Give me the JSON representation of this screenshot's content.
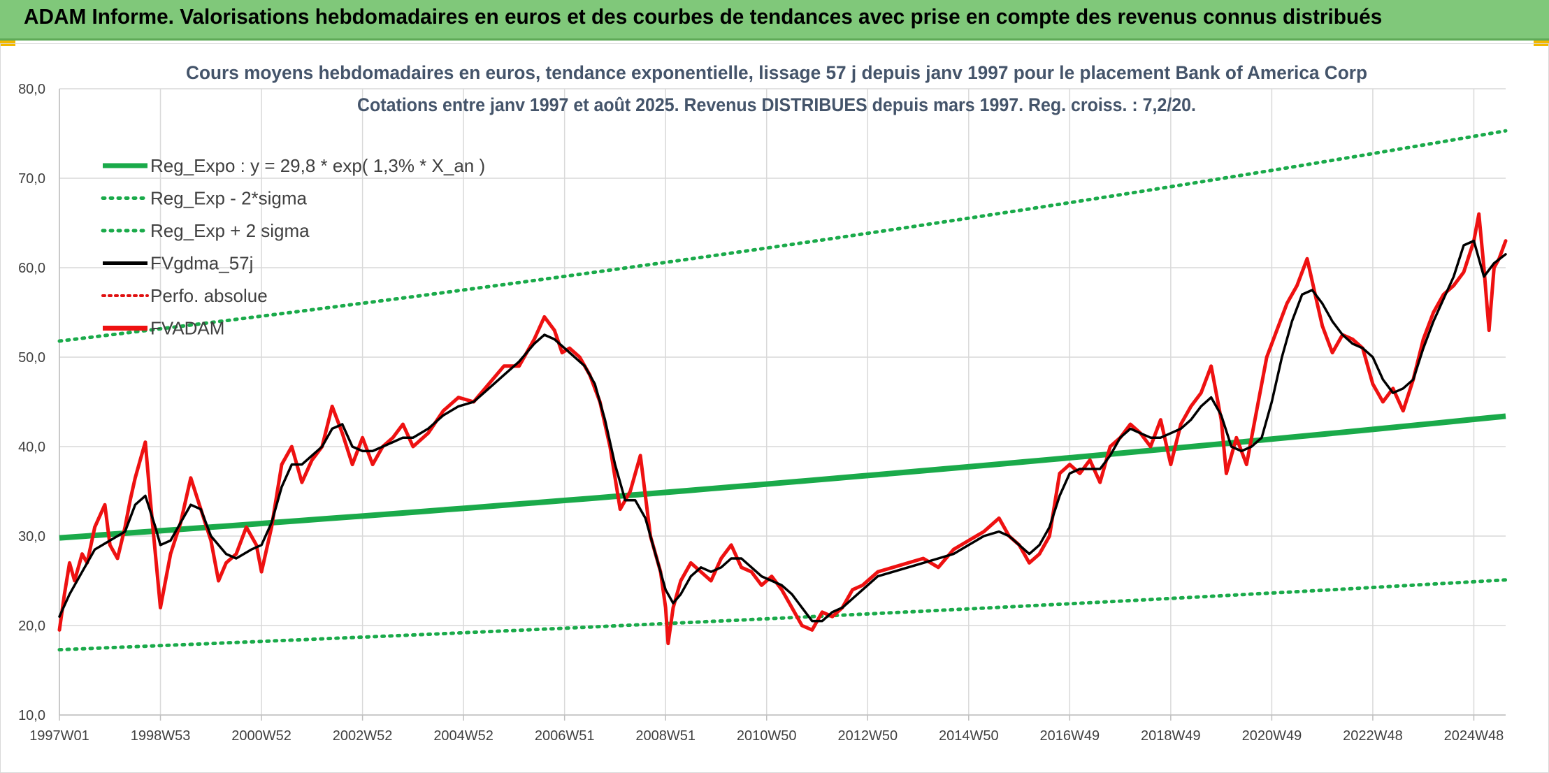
{
  "header": {
    "title": "ADAM Informe. Valorisations hebdomadaires en euros et des courbes de tendances avec prise en compte des revenus connus distribués"
  },
  "colors": {
    "banner": "#80c87a",
    "reg_expo": "#1aaa4a",
    "sigma": "#1aaa4a",
    "fvgdma": "#000000",
    "perfo": "#e01010",
    "fvadam": "#ee1111",
    "axis_text": "#404040",
    "grid": "#d9d9d9"
  },
  "chart_data": {
    "type": "line",
    "title": "Cours moyens hebdomadaires en euros, tendance exponentielle, lissage 57 j depuis janv 1997 pour le placement Bank of America Corp",
    "subtitle": "Cotations entre janv 1997 et août 2025. Revenus DISTRIBUES depuis mars 1997. Reg. croiss. : 7,2/20.",
    "x_range": [
      1997.0,
      2025.63
    ],
    "ylim": [
      10,
      80
    ],
    "yticks": [
      "10,0",
      "20,0",
      "30,0",
      "40,0",
      "50,0",
      "60,0",
      "70,0",
      "80,0"
    ],
    "xticks": [
      {
        "label": "1997W01",
        "x": 1997.0
      },
      {
        "label": "1998W53",
        "x": 1999.0
      },
      {
        "label": "2000W52",
        "x": 2001.0
      },
      {
        "label": "2002W52",
        "x": 2003.0
      },
      {
        "label": "2004W52",
        "x": 2005.0
      },
      {
        "label": "2006W51",
        "x": 2007.0
      },
      {
        "label": "2008W51",
        "x": 2009.0
      },
      {
        "label": "2010W50",
        "x": 2011.0
      },
      {
        "label": "2012W50",
        "x": 2013.0
      },
      {
        "label": "2014W50",
        "x": 2015.0
      },
      {
        "label": "2016W49",
        "x": 2017.0
      },
      {
        "label": "2018W49",
        "x": 2019.0
      },
      {
        "label": "2020W49",
        "x": 2021.0
      },
      {
        "label": "2022W48",
        "x": 2023.0
      },
      {
        "label": "2024W48",
        "x": 2025.0
      }
    ],
    "grid": true,
    "legend_position": "top-left",
    "legend": [
      {
        "key": "reg_expo",
        "label": "Reg_Expo : y = 29,8 * exp( 1,3% *  X_an )",
        "style": "solid-thick"
      },
      {
        "key": "reg_minus",
        "label": "Reg_Exp - 2*sigma",
        "style": "dotted"
      },
      {
        "key": "reg_plus",
        "label": "Reg_Exp + 2 sigma",
        "style": "dotted"
      },
      {
        "key": "fvgdma",
        "label": "FVgdma_57j",
        "style": "solid"
      },
      {
        "key": "perfo",
        "label": "Perfo. absolue",
        "style": "dotted"
      },
      {
        "key": "fvadam",
        "label": "FVADAM",
        "style": "solid-thick"
      }
    ],
    "series": [
      {
        "key": "reg_expo",
        "name": "Reg_Expo : y = 29,8 * exp( 1,3% *  X_an )",
        "x": [
          1997.0,
          2025.63
        ],
        "values": [
          29.8,
          43.4
        ]
      },
      {
        "key": "reg_minus",
        "name": "Reg_Exp - 2*sigma",
        "x": [
          1997.0,
          2025.63
        ],
        "values": [
          17.3,
          25.1
        ]
      },
      {
        "key": "reg_plus",
        "name": "Reg_Exp + 2 sigma",
        "x": [
          1997.0,
          2025.63
        ],
        "values": [
          51.8,
          75.3
        ]
      },
      {
        "key": "fvadam",
        "name": "FVADAM",
        "x": [
          1997.0,
          1997.1,
          1997.2,
          1997.3,
          1997.45,
          1997.55,
          1997.7,
          1997.9,
          1998.0,
          1998.15,
          1998.3,
          1998.4,
          1998.5,
          1998.6,
          1998.7,
          1998.8,
          1998.9,
          1999.0,
          1999.2,
          1999.4,
          1999.6,
          1999.8,
          2000.0,
          2000.15,
          2000.3,
          2000.5,
          2000.7,
          2000.9,
          2001.0,
          2001.2,
          2001.4,
          2001.6,
          2001.8,
          2002.0,
          2002.2,
          2002.4,
          2002.6,
          2002.8,
          2003.0,
          2003.2,
          2003.4,
          2003.6,
          2003.8,
          2004.0,
          2004.3,
          2004.6,
          2004.9,
          2005.2,
          2005.5,
          2005.8,
          2006.1,
          2006.4,
          2006.6,
          2006.8,
          2006.95,
          2007.1,
          2007.3,
          2007.5,
          2007.7,
          2007.9,
          2008.1,
          2008.3,
          2008.5,
          2008.7,
          2008.9,
          2009.0,
          2009.05,
          2009.15,
          2009.3,
          2009.5,
          2009.7,
          2009.9,
          2010.1,
          2010.3,
          2010.5,
          2010.7,
          2010.9,
          2011.1,
          2011.3,
          2011.5,
          2011.7,
          2011.9,
          2012.1,
          2012.3,
          2012.5,
          2012.7,
          2012.9,
          2013.2,
          2013.5,
          2013.8,
          2014.1,
          2014.4,
          2014.7,
          2015.0,
          2015.3,
          2015.6,
          2015.8,
          2016.0,
          2016.2,
          2016.4,
          2016.6,
          2016.8,
          2017.0,
          2017.2,
          2017.4,
          2017.6,
          2017.8,
          2018.0,
          2018.2,
          2018.4,
          2018.6,
          2018.8,
          2019.0,
          2019.2,
          2019.4,
          2019.6,
          2019.8,
          2020.0,
          2020.1,
          2020.2,
          2020.3,
          2020.5,
          2020.7,
          2020.9,
          2021.1,
          2021.3,
          2021.5,
          2021.7,
          2021.9,
          2022.0,
          2022.2,
          2022.4,
          2022.6,
          2022.8,
          2023.0,
          2023.2,
          2023.4,
          2023.6,
          2023.8,
          2024.0,
          2024.2,
          2024.4,
          2024.6,
          2024.8,
          2025.0,
          2025.1,
          2025.2,
          2025.3,
          2025.4,
          2025.5,
          2025.63
        ],
        "values": [
          19.5,
          23.5,
          27.0,
          25.0,
          28.0,
          27.0,
          31.0,
          33.5,
          29.0,
          27.5,
          31.0,
          34.0,
          36.5,
          38.5,
          40.5,
          34.0,
          28.0,
          22.0,
          28.0,
          31.5,
          36.5,
          33.0,
          29.5,
          25.0,
          27.0,
          28.0,
          31.0,
          29.0,
          26.0,
          31.0,
          38.0,
          40.0,
          36.0,
          38.5,
          40.0,
          44.5,
          41.5,
          38.0,
          41.0,
          38.0,
          40.0,
          41.0,
          42.5,
          40.0,
          41.5,
          44.0,
          45.5,
          45.0,
          47.0,
          49.0,
          49.0,
          52.0,
          54.5,
          53.0,
          50.5,
          51.0,
          50.0,
          48.0,
          45.0,
          40.0,
          33.0,
          35.0,
          39.0,
          30.0,
          26.0,
          22.0,
          18.0,
          22.0,
          25.0,
          27.0,
          26.0,
          25.0,
          27.5,
          29.0,
          26.5,
          26.0,
          24.5,
          25.5,
          24.0,
          22.0,
          20.0,
          19.5,
          21.5,
          21.0,
          22.0,
          24.0,
          24.5,
          26.0,
          26.5,
          27.0,
          27.5,
          26.5,
          28.5,
          29.5,
          30.5,
          32.0,
          30.0,
          29.0,
          27.0,
          28.0,
          30.0,
          37.0,
          38.0,
          37.0,
          38.5,
          36.0,
          40.0,
          41.0,
          42.5,
          41.5,
          40.0,
          43.0,
          38.0,
          42.5,
          44.5,
          46.0,
          49.0,
          43.0,
          37.0,
          39.0,
          41.0,
          38.0,
          44.0,
          50.0,
          53.0,
          56.0,
          58.0,
          61.0,
          56.0,
          53.5,
          50.5,
          52.5,
          52.0,
          51.0,
          47.0,
          45.0,
          46.5,
          44.0,
          47.5,
          52.0,
          55.0,
          57.0,
          58.0,
          59.5,
          63.0,
          66.0,
          60.0,
          53.0,
          60.0,
          61.0,
          63.0
        ]
      },
      {
        "key": "fvgdma",
        "name": "FVgdma_57j",
        "x": [
          1997.0,
          1997.2,
          1997.45,
          1997.7,
          1998.0,
          1998.3,
          1998.5,
          1998.7,
          1998.9,
          1999.0,
          1999.2,
          1999.4,
          1999.6,
          1999.8,
          2000.0,
          2000.3,
          2000.5,
          2000.8,
          2001.0,
          2001.2,
          2001.4,
          2001.6,
          2001.8,
          2002.0,
          2002.2,
          2002.4,
          2002.6,
          2002.8,
          2003.0,
          2003.2,
          2003.4,
          2003.6,
          2003.8,
          2004.0,
          2004.3,
          2004.6,
          2004.9,
          2005.2,
          2005.5,
          2005.8,
          2006.1,
          2006.4,
          2006.6,
          2006.8,
          2007.0,
          2007.2,
          2007.4,
          2007.6,
          2007.8,
          2008.0,
          2008.2,
          2008.4,
          2008.6,
          2008.8,
          2009.0,
          2009.15,
          2009.3,
          2009.5,
          2009.7,
          2009.9,
          2010.1,
          2010.3,
          2010.5,
          2010.7,
          2010.9,
          2011.1,
          2011.3,
          2011.5,
          2011.7,
          2011.9,
          2012.1,
          2012.3,
          2012.5,
          2012.7,
          2012.9,
          2013.2,
          2013.5,
          2013.8,
          2014.1,
          2014.4,
          2014.7,
          2015.0,
          2015.3,
          2015.6,
          2015.8,
          2016.0,
          2016.2,
          2016.4,
          2016.6,
          2016.8,
          2017.0,
          2017.2,
          2017.4,
          2017.6,
          2017.8,
          2018.0,
          2018.2,
          2018.4,
          2018.6,
          2018.8,
          2019.0,
          2019.2,
          2019.4,
          2019.6,
          2019.8,
          2020.0,
          2020.2,
          2020.4,
          2020.6,
          2020.8,
          2021.0,
          2021.2,
          2021.4,
          2021.6,
          2021.8,
          2022.0,
          2022.2,
          2022.4,
          2022.6,
          2022.8,
          2023.0,
          2023.2,
          2023.4,
          2023.6,
          2023.8,
          2024.0,
          2024.2,
          2024.4,
          2024.6,
          2024.8,
          2025.0,
          2025.2,
          2025.4,
          2025.63
        ],
        "values": [
          21.0,
          23.5,
          26.0,
          28.5,
          29.5,
          30.5,
          33.5,
          34.5,
          31.0,
          29.0,
          29.5,
          31.5,
          33.5,
          33.0,
          30.0,
          28.0,
          27.5,
          28.5,
          29.0,
          31.5,
          35.5,
          38.0,
          38.0,
          39.0,
          40.0,
          42.0,
          42.5,
          40.0,
          39.5,
          39.5,
          40.0,
          40.5,
          41.0,
          41.0,
          42.0,
          43.5,
          44.5,
          45.0,
          46.5,
          48.0,
          49.5,
          51.5,
          52.5,
          52.0,
          51.0,
          50.0,
          49.0,
          47.0,
          43.0,
          38.0,
          34.0,
          34.0,
          32.0,
          28.0,
          24.0,
          22.5,
          23.5,
          25.5,
          26.5,
          26.0,
          26.5,
          27.5,
          27.5,
          26.5,
          25.5,
          25.0,
          24.5,
          23.5,
          22.0,
          20.5,
          20.5,
          21.5,
          22.0,
          23.0,
          24.0,
          25.5,
          26.0,
          26.5,
          27.0,
          27.5,
          28.0,
          29.0,
          30.0,
          30.5,
          30.0,
          29.0,
          28.0,
          29.0,
          31.0,
          34.5,
          37.0,
          37.5,
          37.5,
          37.5,
          39.0,
          41.0,
          42.0,
          41.5,
          41.0,
          41.0,
          41.5,
          42.0,
          43.0,
          44.5,
          45.5,
          43.5,
          40.0,
          39.5,
          40.0,
          41.0,
          45.0,
          50.0,
          54.0,
          57.0,
          57.5,
          56.0,
          54.0,
          52.5,
          51.5,
          51.0,
          50.0,
          47.5,
          46.0,
          46.5,
          47.5,
          51.0,
          54.0,
          56.5,
          59.0,
          62.5,
          63.0,
          59.0,
          60.5,
          61.5
        ]
      }
    ]
  }
}
